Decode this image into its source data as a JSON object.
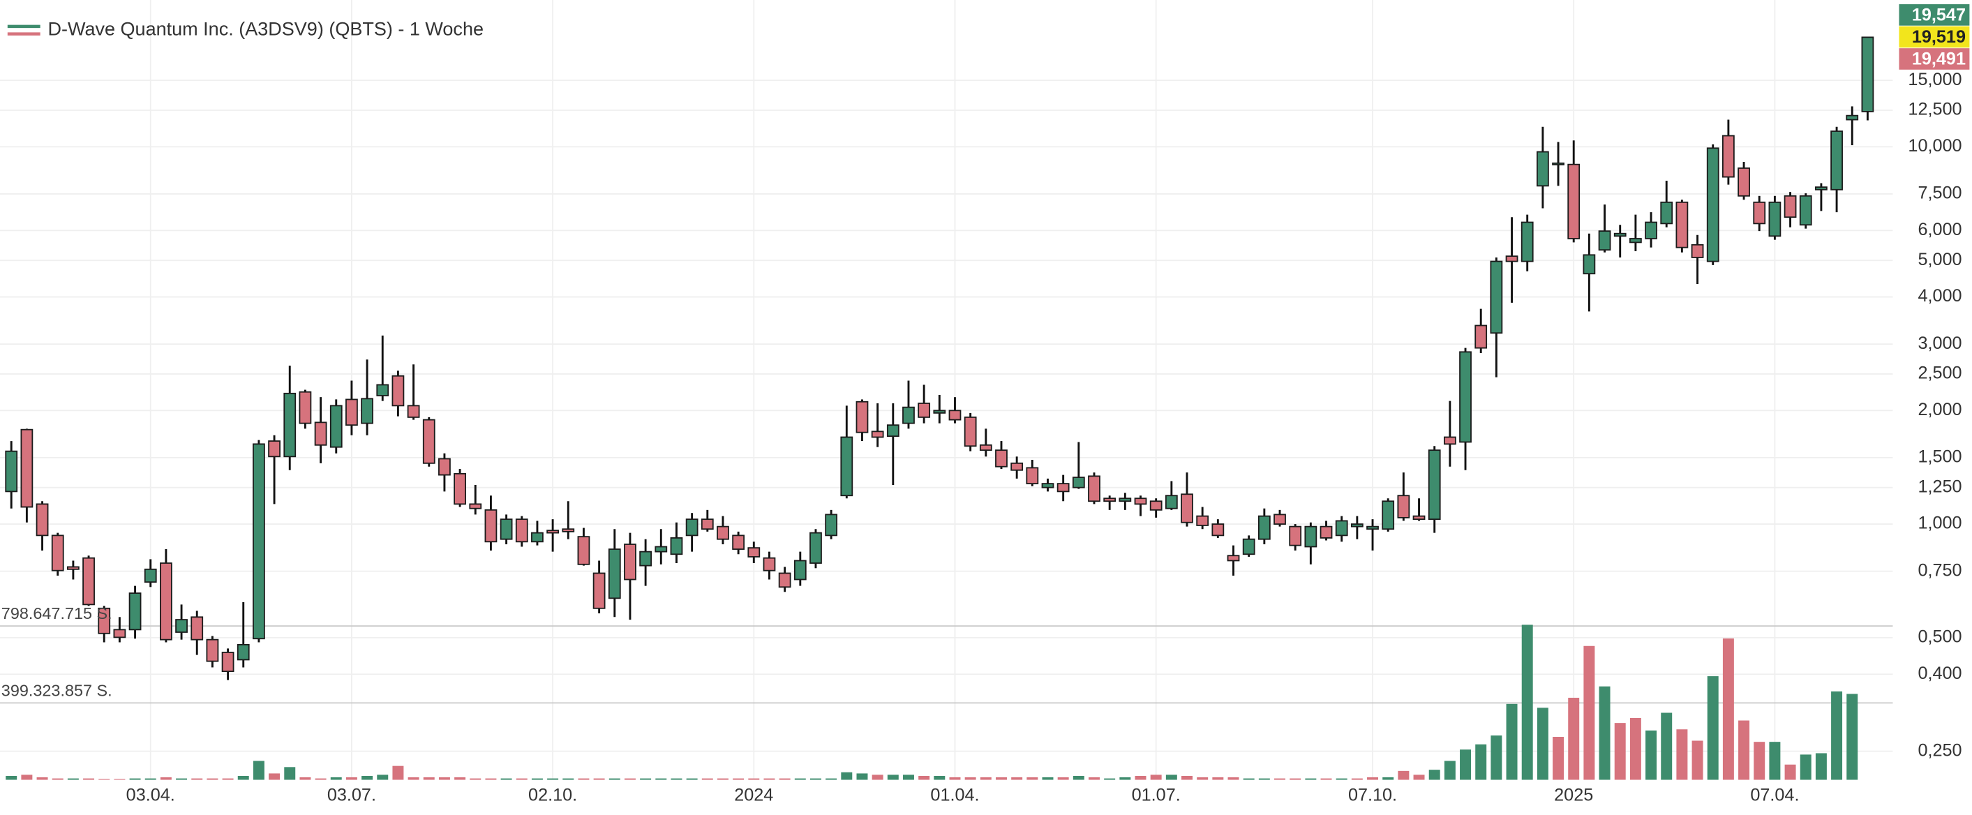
{
  "chart_data": {
    "type": "candlestick",
    "log_scale": true,
    "grid": true,
    "legend": "top-left",
    "ylim": [
      0.21,
      24.5
    ],
    "yticks": [
      {
        "value": 0.25,
        "label": "0,250"
      },
      {
        "value": 0.4,
        "label": "0,400"
      },
      {
        "value": 0.5,
        "label": "0,500"
      },
      {
        "value": 0.75,
        "label": "0,750"
      },
      {
        "value": 1,
        "label": "1,000"
      },
      {
        "value": 1.25,
        "label": "1,250"
      },
      {
        "value": 1.5,
        "label": "1,500"
      },
      {
        "value": 2,
        "label": "2,000"
      },
      {
        "value": 2.5,
        "label": "2,500"
      },
      {
        "value": 3,
        "label": "3,000"
      },
      {
        "value": 4,
        "label": "4,000"
      },
      {
        "value": 5,
        "label": "5,000"
      },
      {
        "value": 6,
        "label": "6,000"
      },
      {
        "value": 7.5,
        "label": "7,500"
      },
      {
        "value": 10,
        "label": "10,000"
      },
      {
        "value": 12.5,
        "label": "12,500"
      },
      {
        "value": 15,
        "label": "15,000"
      }
    ],
    "categories": [
      null,
      null,
      null,
      null,
      null,
      null,
      null,
      null,
      null,
      "03.04.",
      null,
      null,
      null,
      null,
      null,
      null,
      null,
      null,
      null,
      null,
      null,
      null,
      "03.07.",
      null,
      null,
      null,
      null,
      null,
      null,
      null,
      null,
      null,
      null,
      null,
      null,
      "02.10.",
      null,
      null,
      null,
      null,
      null,
      null,
      null,
      null,
      null,
      null,
      null,
      null,
      "2024",
      null,
      null,
      null,
      null,
      null,
      null,
      null,
      null,
      null,
      null,
      null,
      null,
      "01.04.",
      null,
      null,
      null,
      null,
      null,
      null,
      null,
      null,
      null,
      null,
      null,
      null,
      "01.07.",
      null,
      null,
      null,
      null,
      null,
      null,
      null,
      null,
      null,
      null,
      null,
      null,
      null,
      "07.10.",
      null,
      null,
      null,
      null,
      null,
      null,
      null,
      null,
      null,
      null,
      null,
      null,
      "2025",
      null,
      null,
      null,
      null,
      null,
      null,
      null,
      null,
      null,
      null,
      null,
      null,
      "07.04.",
      null,
      null,
      null,
      null,
      null,
      null
    ],
    "series": [
      {
        "name": "D-Wave Quantum Inc. (A3DSV9) (QBTS) - 1 Woche",
        "up_color": "#3e8c6d",
        "down_color": "#d6737d",
        "open": [
          1.22,
          1.78,
          1.13,
          0.933,
          0.77,
          0.813,
          0.598,
          0.525,
          0.525,
          0.702,
          0.788,
          0.517,
          0.567,
          0.494,
          0.457,
          0.437,
          0.497,
          1.66,
          1.51,
          2.24,
          1.86,
          1.6,
          2.14,
          1.85,
          2.19,
          2.47,
          2.06,
          1.89,
          1.49,
          1.36,
          1.13,
          1.09,
          0.912,
          1.03,
          0.898,
          0.962,
          0.97,
          0.926,
          0.741,
          0.636,
          0.884,
          0.776,
          0.845,
          0.832,
          0.933,
          1.03,
          0.985,
          0.933,
          0.865,
          0.813,
          0.741,
          0.713,
          0.788,
          0.933,
          1.19,
          2.11,
          1.76,
          1.71,
          1.85,
          2.09,
          1.97,
          2.0,
          1.92,
          1.62,
          1.57,
          1.45,
          1.41,
          1.25,
          1.28,
          1.25,
          1.34,
          1.17,
          1.15,
          1.17,
          1.15,
          1.1,
          1.2,
          1.05,
          1.0,
          0.825,
          0.832,
          0.912,
          1.06,
          0.985,
          0.871,
          0.985,
          0.933,
          0.985,
          0.97,
          0.97,
          1.19,
          1.05,
          1.03,
          1.7,
          1.65,
          3.36,
          3.21,
          5.13,
          4.97,
          7.88,
          8.98,
          8.98,
          4.61,
          5.33,
          5.8,
          5.58,
          5.71,
          6.26,
          7.13,
          5.5,
          4.97,
          10.7,
          8.78,
          7.13,
          5.8,
          7.41,
          6.21,
          7.7,
          7.7,
          11.8,
          12.4
        ],
        "high": [
          1.66,
          1.79,
          1.15,
          0.948,
          0.8,
          0.825,
          0.607,
          0.567,
          0.686,
          0.807,
          0.858,
          0.612,
          0.589,
          0.505,
          0.468,
          0.621,
          1.67,
          1.72,
          2.63,
          2.27,
          2.17,
          2.14,
          2.4,
          2.73,
          3.16,
          2.55,
          2.65,
          1.92,
          1.54,
          1.4,
          1.27,
          1.19,
          1.06,
          1.05,
          1.02,
          1.03,
          1.15,
          0.977,
          0.8,
          0.97,
          0.948,
          0.912,
          0.97,
          1.01,
          1.07,
          1.09,
          1.05,
          0.955,
          0.898,
          0.845,
          0.77,
          0.845,
          0.97,
          1.09,
          2.06,
          2.14,
          2.09,
          2.09,
          2.4,
          2.34,
          2.2,
          2.17,
          1.97,
          1.79,
          1.66,
          1.51,
          1.48,
          1.32,
          1.35,
          1.65,
          1.37,
          1.19,
          1.21,
          1.19,
          1.17,
          1.3,
          1.37,
          1.11,
          1.03,
          0.878,
          0.933,
          1.1,
          1.09,
          1.0,
          1.01,
          1.02,
          1.05,
          1.05,
          1.03,
          1.17,
          1.37,
          1.17,
          1.61,
          2.12,
          2.93,
          3.72,
          5.09,
          6.51,
          6.61,
          11.3,
          10.3,
          10.4,
          5.89,
          7.03,
          6.21,
          6.61,
          6.71,
          8.13,
          7.24,
          5.84,
          10.15,
          11.8,
          9.12,
          7.41,
          7.41,
          7.59,
          7.53,
          8.01,
          11.3,
          12.8,
          19.55
        ],
        "low": [
          1.1,
          1.01,
          0.851,
          0.73,
          0.713,
          0.607,
          0.486,
          0.486,
          0.497,
          0.681,
          0.486,
          0.494,
          0.45,
          0.417,
          0.386,
          0.417,
          0.486,
          1.13,
          1.39,
          1.79,
          1.45,
          1.54,
          1.72,
          1.72,
          2.12,
          1.93,
          1.89,
          1.42,
          1.22,
          1.11,
          1.06,
          0.851,
          0.884,
          0.871,
          0.878,
          0.845,
          0.912,
          0.776,
          0.58,
          0.567,
          0.558,
          0.686,
          0.782,
          0.788,
          0.845,
          0.955,
          0.884,
          0.832,
          0.788,
          0.713,
          0.661,
          0.686,
          0.764,
          0.912,
          1.17,
          1.66,
          1.6,
          1.27,
          1.79,
          1.85,
          1.85,
          1.85,
          1.56,
          1.51,
          1.4,
          1.32,
          1.26,
          1.22,
          1.15,
          1.24,
          1.13,
          1.09,
          1.09,
          1.05,
          1.04,
          1.09,
          0.985,
          0.97,
          0.919,
          0.73,
          0.819,
          0.884,
          0.985,
          0.851,
          0.782,
          0.905,
          0.898,
          0.912,
          0.851,
          0.955,
          1.02,
          1.02,
          0.948,
          1.42,
          1.39,
          2.84,
          2.45,
          3.86,
          4.68,
          6.87,
          7.88,
          5.58,
          3.66,
          5.25,
          5.09,
          5.29,
          5.41,
          6.12,
          5.25,
          4.33,
          4.86,
          7.94,
          7.24,
          5.98,
          5.67,
          6.12,
          6.07,
          6.76,
          6.71,
          10.1,
          11.75
        ],
        "close": [
          1.56,
          1.11,
          0.933,
          0.753,
          0.759,
          0.612,
          0.513,
          0.501,
          0.656,
          0.759,
          0.494,
          0.558,
          0.494,
          0.433,
          0.407,
          0.479,
          1.63,
          1.51,
          2.22,
          1.85,
          1.62,
          2.06,
          1.83,
          2.15,
          2.34,
          2.06,
          1.92,
          1.45,
          1.35,
          1.13,
          1.1,
          0.898,
          1.03,
          0.898,
          0.948,
          0.948,
          0.955,
          0.782,
          0.598,
          0.858,
          0.713,
          0.845,
          0.871,
          0.919,
          1.03,
          0.97,
          0.912,
          0.858,
          0.819,
          0.753,
          0.681,
          0.8,
          0.948,
          1.06,
          1.7,
          1.75,
          1.7,
          1.83,
          2.04,
          1.92,
          2.0,
          1.89,
          1.61,
          1.57,
          1.42,
          1.39,
          1.28,
          1.28,
          1.22,
          1.33,
          1.15,
          1.15,
          1.17,
          1.13,
          1.09,
          1.19,
          1.01,
          0.992,
          0.933,
          0.8,
          0.912,
          1.05,
          1.0,
          0.878,
          0.985,
          0.919,
          1.02,
          1.0,
          0.985,
          1.15,
          1.04,
          1.03,
          1.57,
          1.63,
          2.86,
          2.93,
          4.97,
          4.97,
          6.31,
          9.7,
          9.05,
          5.71,
          5.17,
          5.98,
          5.89,
          5.71,
          6.31,
          7.13,
          5.41,
          5.09,
          9.92,
          8.32,
          7.41,
          6.26,
          7.13,
          6.51,
          7.41,
          7.82,
          11.0,
          12.1,
          19.519
        ]
      }
    ],
    "volume": {
      "ylim": [
        0,
        810000000
      ],
      "yticks": [
        {
          "value": 399323857,
          "label": "399.323.857 S."
        },
        {
          "value": 798647715,
          "label": "798.647.715 S."
        }
      ],
      "values": [
        20000000,
        26000000,
        13000000,
        7000000,
        7000000,
        7000000,
        4000000,
        4000000,
        7000000,
        7000000,
        13000000,
        7000000,
        7000000,
        7000000,
        7000000,
        20000000,
        98000000,
        33000000,
        66000000,
        13000000,
        7000000,
        13000000,
        13000000,
        20000000,
        26000000,
        72000000,
        13000000,
        13000000,
        13000000,
        13000000,
        7000000,
        7000000,
        7000000,
        7000000,
        7000000,
        7000000,
        7000000,
        7000000,
        7000000,
        7000000,
        7000000,
        7000000,
        7000000,
        7000000,
        7000000,
        7000000,
        7000000,
        7000000,
        7000000,
        7000000,
        7000000,
        7000000,
        7000000,
        7000000,
        39000000,
        33000000,
        26000000,
        26000000,
        26000000,
        20000000,
        20000000,
        13000000,
        13000000,
        13000000,
        13000000,
        13000000,
        13000000,
        13000000,
        13000000,
        20000000,
        13000000,
        7000000,
        13000000,
        20000000,
        26000000,
        26000000,
        20000000,
        13000000,
        13000000,
        13000000,
        7000000,
        7000000,
        7000000,
        7000000,
        7000000,
        7000000,
        7000000,
        7000000,
        13000000,
        13000000,
        46000000,
        26000000,
        52000000,
        98000000,
        157000000,
        184000000,
        230000000,
        394000000,
        805000000,
        374000000,
        223000000,
        426000000,
        695000000,
        485000000,
        295000000,
        321000000,
        256000000,
        348000000,
        262000000,
        203000000,
        538000000,
        734000000,
        308000000,
        197000000,
        197000000,
        79000000,
        131000000,
        138000000,
        459000000,
        446000000,
        null
      ]
    },
    "price_labels": [
      {
        "value": 19.547,
        "label": "19,547",
        "color": "#3e8c6d",
        "text_color": "#ffffff"
      },
      {
        "value": 19.519,
        "label": "19,519",
        "color": "#f2e51c",
        "text_color": "#222222"
      },
      {
        "value": 19.491,
        "label": "19,491",
        "color": "#d6737d",
        "text_color": "#ffffff"
      }
    ]
  }
}
